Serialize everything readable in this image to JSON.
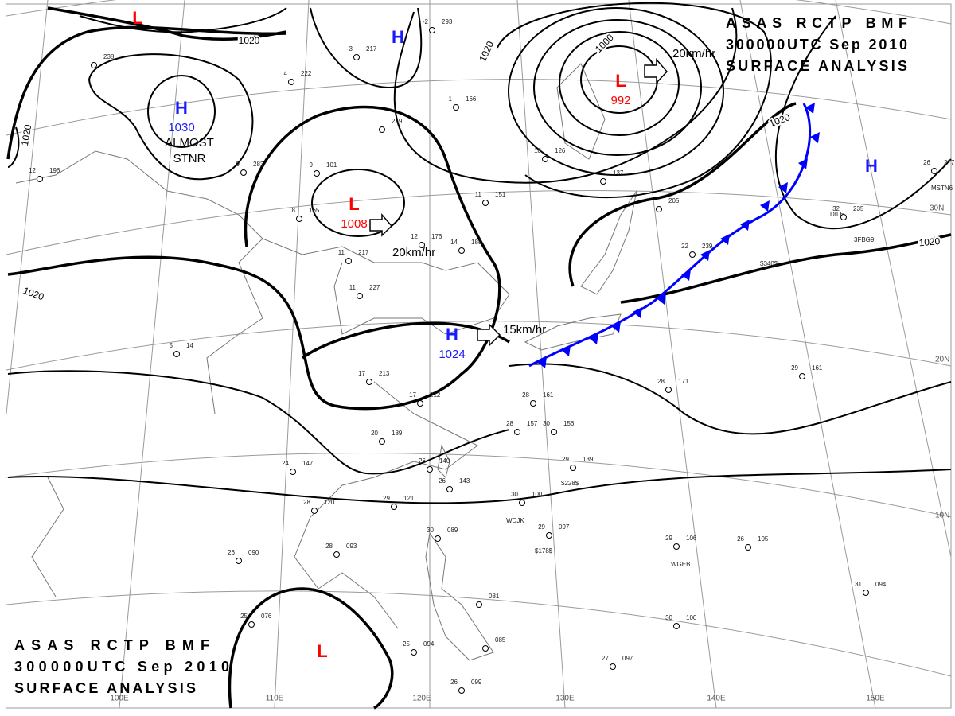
{
  "titles": [
    {
      "lines": [
        "ASAS RCTP BMF",
        "300000UTC Sep 2010",
        "SURFACE ANALYSIS"
      ]
    },
    {
      "lines": [
        "ASAS RCTP BMF",
        "300000UTC Sep 2010",
        "SURFACE ANALYSIS"
      ]
    }
  ],
  "pressure_centers": [
    {
      "symbol": "L"
    },
    {
      "symbol": "H"
    },
    {
      "symbol": "H",
      "value": "1030",
      "note": "ALMOST STNR"
    },
    {
      "symbol": "L",
      "value": "1008"
    },
    {
      "symbol": "L",
      "value": "992"
    },
    {
      "symbol": "H",
      "value": "1024"
    },
    {
      "symbol": "H"
    },
    {
      "symbol": "L"
    }
  ],
  "isobar_labels": [
    "1020",
    "1020",
    "1020",
    "1000",
    "1020",
    "1020",
    "1020"
  ],
  "motion_labels": [
    "20km/hr",
    "20km/hr",
    "15km/hr"
  ],
  "latitude_labels": [
    "30N",
    "20N",
    "10N"
  ],
  "longitude_labels": [
    "100E",
    "110E",
    "120E",
    "130E",
    "140E",
    "150E"
  ],
  "stations": [
    {
      "temp": "",
      "pressure": "238"
    },
    {
      "temp": "12",
      "pressure": "196"
    },
    {
      "temp": "4",
      "pressure": "222"
    },
    {
      "temp": "-3",
      "pressure": "217"
    },
    {
      "temp": "-2",
      "pressure": "293"
    },
    {
      "temp": "1",
      "pressure": "166"
    },
    {
      "temp": "",
      "pressure": "259"
    },
    {
      "temp": "9",
      "pressure": "283"
    },
    {
      "temp": "9",
      "pressure": "101"
    },
    {
      "temp": "8",
      "pressure": "165"
    },
    {
      "temp": "12",
      "pressure": "176"
    },
    {
      "temp": "14",
      "pressure": "188"
    },
    {
      "temp": "11",
      "pressure": "217"
    },
    {
      "temp": "11",
      "pressure": "227"
    },
    {
      "temp": "11",
      "pressure": "151"
    },
    {
      "temp": "10",
      "pressure": "126"
    },
    {
      "temp": "",
      "pressure": "137"
    },
    {
      "temp": "",
      "pressure": "205"
    },
    {
      "temp": "22",
      "pressure": "239"
    },
    {
      "temp": "32",
      "pressure": "235"
    },
    {
      "temp": "26",
      "pressure": "277"
    },
    {
      "temp": "17",
      "pressure": "213"
    },
    {
      "temp": "17",
      "pressure": "212"
    },
    {
      "temp": "20",
      "pressure": "189"
    },
    {
      "temp": "24",
      "pressure": "147"
    },
    {
      "temp": "28",
      "pressure": "120"
    },
    {
      "temp": "29",
      "pressure": "121"
    },
    {
      "temp": "26",
      "pressure": "140"
    },
    {
      "temp": "26",
      "pressure": "143"
    },
    {
      "temp": "28",
      "pressure": "161"
    },
    {
      "temp": "28",
      "pressure": "157"
    },
    {
      "temp": "30",
      "pressure": "156"
    },
    {
      "temp": "29",
      "pressure": "139"
    },
    {
      "temp": "30",
      "pressure": "100"
    },
    {
      "temp": "29",
      "pressure": "097"
    },
    {
      "temp": "29",
      "pressure": "106"
    },
    {
      "temp": "26",
      "pressure": "105"
    },
    {
      "temp": "31",
      "pressure": "094"
    },
    {
      "temp": "30",
      "pressure": "100"
    },
    {
      "temp": "27",
      "pressure": "097"
    },
    {
      "temp": "26",
      "pressure": "090"
    },
    {
      "temp": "28",
      "pressure": "093"
    },
    {
      "temp": "25",
      "pressure": "076"
    },
    {
      "temp": "30",
      "pressure": "089"
    },
    {
      "temp": "",
      "pressure": "081"
    },
    {
      "temp": "",
      "pressure": "085"
    },
    {
      "temp": "25",
      "pressure": "094"
    },
    {
      "temp": "26",
      "pressure": "099"
    },
    {
      "temp": "28",
      "pressure": "171"
    },
    {
      "temp": "29",
      "pressure": "161"
    },
    {
      "temp": "5",
      "pressure": "14"
    }
  ],
  "station_ids": [
    "WDJK",
    "DILE",
    "3FBG9",
    "WGEB",
    "MSTN6",
    "$228$",
    "$178$",
    "$340$"
  ]
}
